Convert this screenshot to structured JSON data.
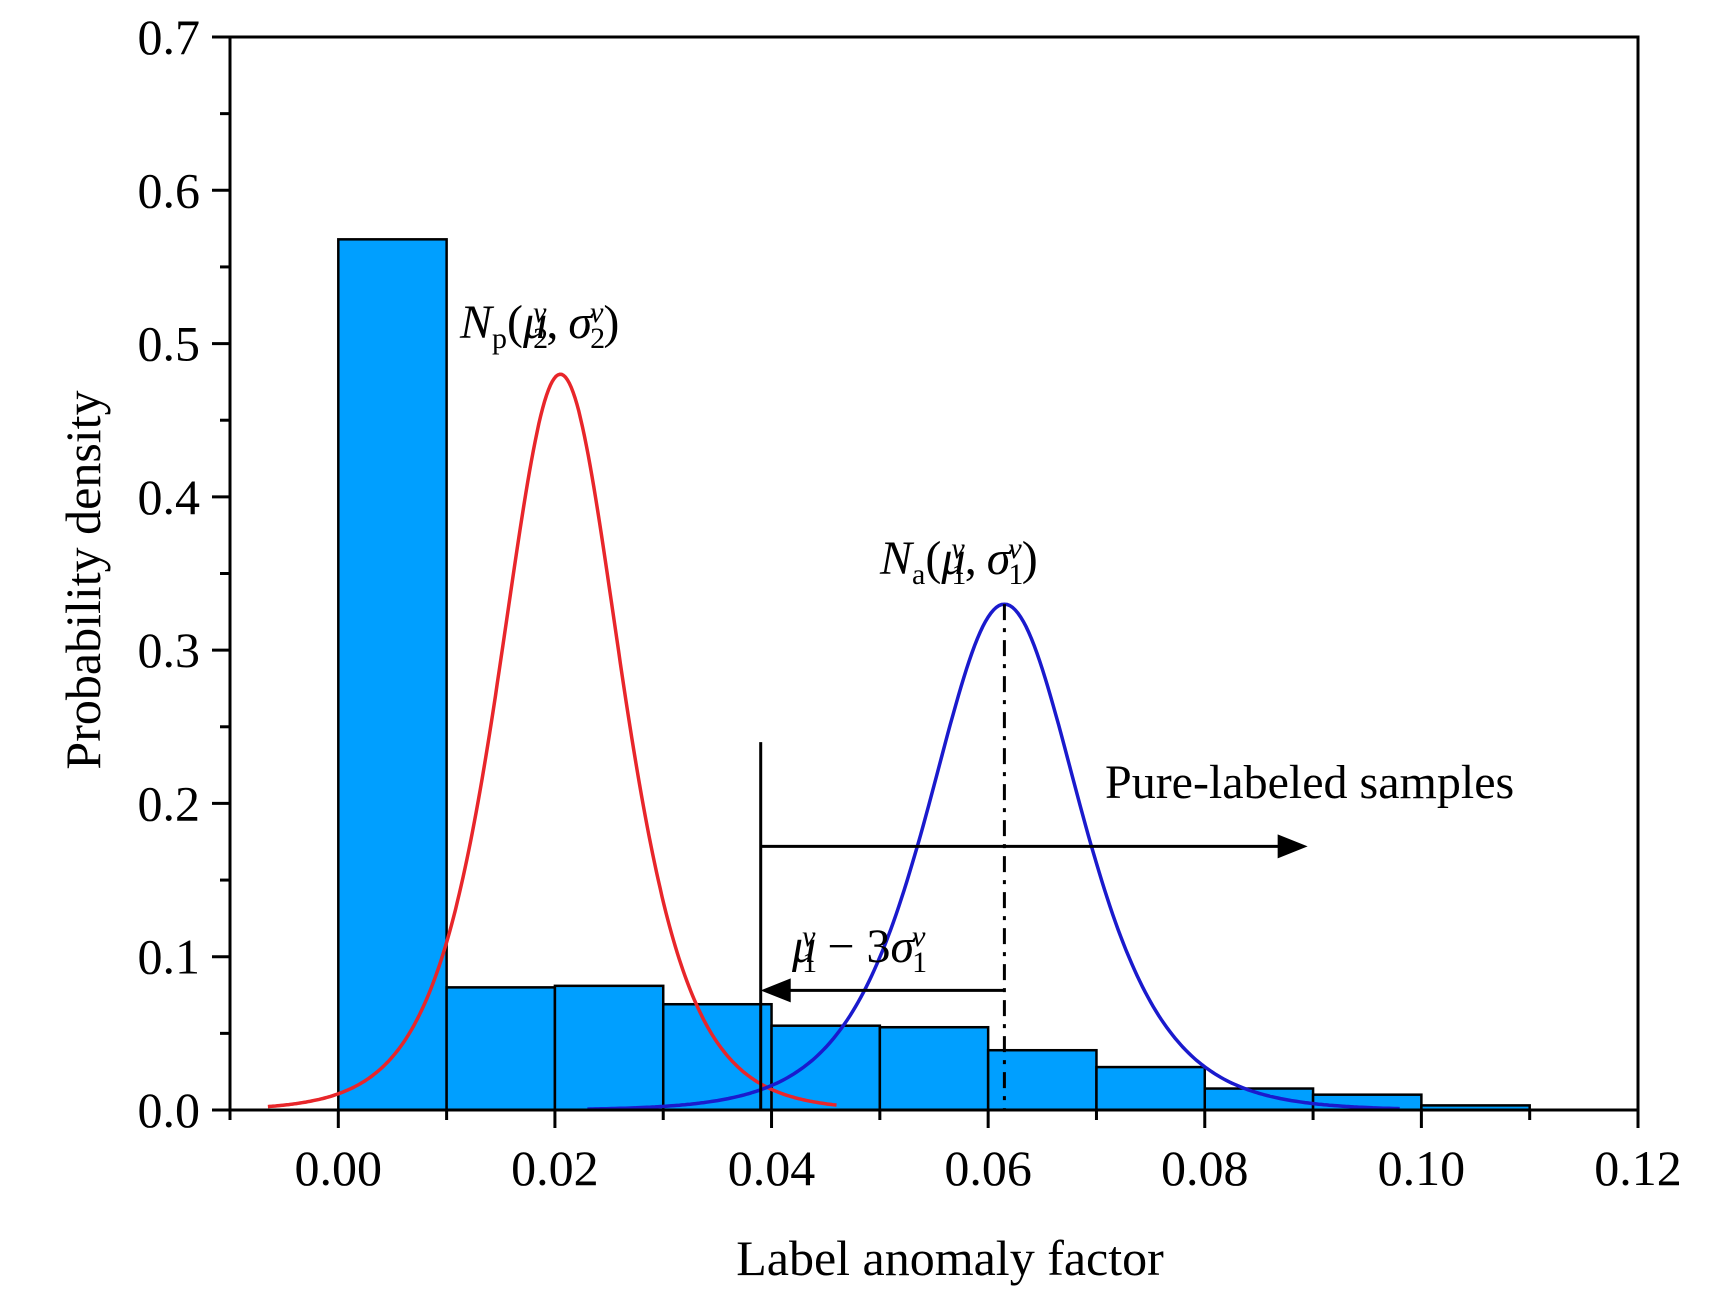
{
  "chart_data": {
    "type": "bar",
    "xlabel": "Label anomaly factor",
    "ylabel": "Probability density",
    "xlim": [
      -0.01,
      0.12
    ],
    "ylim": [
      0,
      0.7
    ],
    "x_ticks": [
      "0.00",
      "0.02",
      "0.04",
      "0.06",
      "0.08",
      "0.10",
      "0.12"
    ],
    "y_ticks": [
      "0.0",
      "0.1",
      "0.2",
      "0.3",
      "0.4",
      "0.5",
      "0.6",
      "0.7"
    ],
    "bin_width": 0.01,
    "bin_starts": [
      0.0,
      0.01,
      0.02,
      0.03,
      0.04,
      0.05,
      0.06,
      0.07,
      0.08,
      0.09,
      0.1
    ],
    "bar_values": [
      0.568,
      0.08,
      0.081,
      0.069,
      0.055,
      0.054,
      0.039,
      0.028,
      0.014,
      0.01,
      0.003
    ],
    "bar_color": "#009fff",
    "series": [
      {
        "color": "#e8262a",
        "mu": 0.0205,
        "sigma": 0.006,
        "peak": 0.48,
        "x_range": [
          -0.0065,
          0.046
        ]
      },
      {
        "color": "#1a1acd",
        "mu": 0.0615,
        "sigma": 0.0075,
        "peak": 0.33,
        "x_range": [
          0.023,
          0.098
        ]
      }
    ],
    "threshold_x": 0.039,
    "annotations": {
      "np": {
        "script": "N",
        "sub_p": "p",
        "open": "(",
        "mu": "μ",
        "two": "2",
        "nu": "ν",
        "comma": ",",
        "sigma": "σ",
        "close": ")"
      },
      "na": {
        "script": "N",
        "sub_a": "a",
        "open": "(",
        "mu": "μ",
        "one": "1",
        "nu": "ν",
        "comma": ",",
        "sigma": "σ",
        "close": ")"
      },
      "pure": "Pure-labeled samples",
      "thresh": {
        "mu": "μ",
        "one": "1",
        "nu": "ν",
        "minus": " − 3",
        "sigma": "σ"
      }
    }
  }
}
